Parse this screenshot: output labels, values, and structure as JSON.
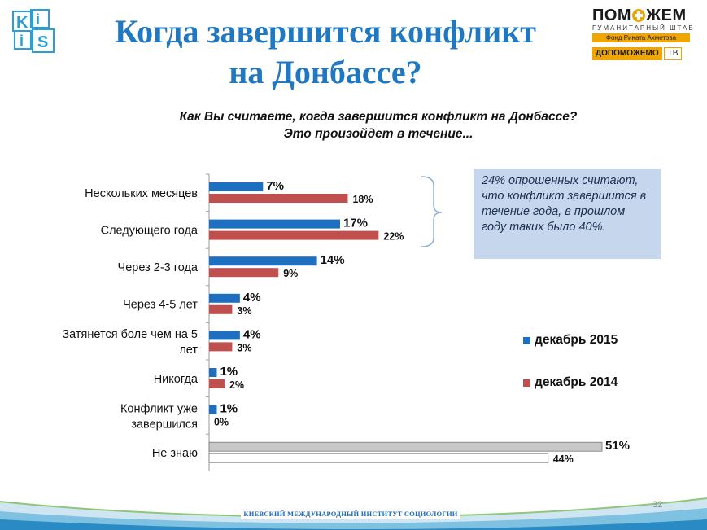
{
  "header": {
    "title_line1": "Когда завершится конфликт",
    "title_line2": "на Донбассе?",
    "logo_left_text": "KIIS"
  },
  "partner": {
    "name_left": "ПОМ",
    "name_right": "ЖЕМ",
    "subtitle": "ГУМАНИТАРНЫЙ ШТАБ",
    "fond": "Фонд Рината Ахметова",
    "dop_label": "ДОПОМОЖЕМО",
    "dop_tv": "ТВ"
  },
  "question": {
    "line1": "Как Вы считаете, когда завершится конфликт на Донбассе?",
    "line2": "Это произойдет в течение..."
  },
  "note": {
    "text": "24% опрошенных считают, что конфликт завершится в течение года, в прошлом году таких было 40%."
  },
  "chart_data": {
    "type": "bar",
    "orientation": "horizontal",
    "categories": [
      "Нескольких месяцев",
      "Следующего года",
      "Через 2-3 года",
      "Через 4-5 лет",
      "Затянется боле чем на 5 лет",
      "Никогда",
      "Конфликт уже завершился",
      "Не знаю"
    ],
    "series": [
      {
        "name": "декабрь 2015",
        "values": [
          7,
          17,
          14,
          4,
          4,
          1,
          1,
          51
        ],
        "color": "#1f6fc0",
        "last_color": "#c8c8c8"
      },
      {
        "name": "декабрь 2014",
        "values": [
          18,
          22,
          9,
          3,
          3,
          2,
          0,
          44
        ],
        "color": "#c0504d",
        "last_color": "#ffffff"
      }
    ],
    "value_suffix": "%",
    "xlim": [
      0,
      51
    ],
    "legend_position": "right"
  },
  "footer": {
    "institute": "КИЕВСКИЙ МЕЖДУНАРОДНЫЙ ИНСТИТУТ СОЦИОЛОГИИ",
    "page_number": "32"
  },
  "colors": {
    "title": "#1f78c1",
    "note_bg": "#c6d6ec",
    "brace": "#8fb0d8",
    "partner_accent": "#f1a500"
  }
}
